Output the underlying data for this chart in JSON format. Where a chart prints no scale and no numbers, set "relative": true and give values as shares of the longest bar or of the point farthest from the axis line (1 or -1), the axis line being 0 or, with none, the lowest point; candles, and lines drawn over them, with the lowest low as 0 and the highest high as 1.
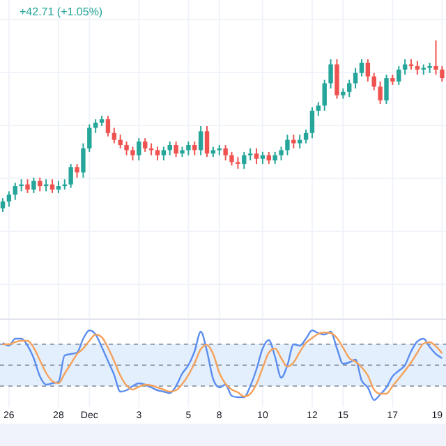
{
  "chart_data": [
    {
      "type": "candlestick",
      "relative": true,
      "tick_labels": false,
      "grid": true,
      "colors": [
        "#26a69a",
        "#26a69a",
        "#26a69a",
        "#26a69a",
        "#ef5350",
        "#26a69a",
        "#ef5350",
        "#26a69a",
        "#ef5350",
        "#26a69a",
        "#26a69a",
        "#26a69a",
        "#ef5350",
        "#26a69a",
        "#26a69a",
        "#26a69a",
        "#26a69a",
        "#ef5350",
        "#ef5350",
        "#ef5350",
        "#ef5350",
        "#ef5350",
        "#26a69a",
        "#ef5350",
        "#ef5350",
        "#ef5350",
        "#26a69a",
        "#26a69a",
        "#ef5350",
        "#26a69a",
        "#26a69a",
        "#ef5350",
        "#26a69a",
        "#ef5350",
        "#26a69a",
        "#26a69a",
        "#ef5350",
        "#ef5350",
        "#ef5350",
        "#26a69a",
        "#26a69a",
        "#ef5350",
        "#26a69a",
        "#ef5350",
        "#26a69a",
        "#26a69a",
        "#26a69a",
        "#ef5350",
        "#26a69a",
        "#26a69a",
        "#26a69a",
        "#26a69a",
        "#26a69a",
        "#26a69a",
        "#ef5350",
        "#26a69a",
        "#26a69a",
        "#26a69a",
        "#26a69a",
        "#ef5350",
        "#ef5350",
        "#ef5350",
        "#26a69a",
        "#ef5350",
        "#26a69a",
        "#26a69a",
        "#ef5350",
        "#ef5350",
        "#26a69a",
        "#26a69a",
        "#ef5350",
        "#ef5350"
      ],
      "annotations": [
        "+42.71 (+1.05%)"
      ],
      "categories": [
        null,
        null,
        null,
        null,
        null,
        null,
        null,
        null,
        null,
        null,
        null,
        null,
        null,
        null,
        null,
        null,
        null,
        null,
        null,
        null,
        null,
        null,
        null,
        null,
        null,
        null,
        null,
        null,
        null,
        null,
        null,
        null,
        null,
        null,
        null,
        null,
        null,
        null,
        null,
        null,
        null,
        null,
        null,
        null,
        null,
        null,
        null,
        null,
        null,
        null,
        null,
        null,
        null,
        null,
        null,
        null,
        null,
        null,
        null,
        null,
        null,
        null,
        null,
        null,
        null,
        null,
        null,
        null,
        null,
        null,
        null,
        null
      ],
      "ohlc": [
        [
          0.02,
          0.08,
          0,
          0.06
        ],
        [
          0.06,
          0.12,
          0.03,
          0.1
        ],
        [
          0.1,
          0.17,
          0.07,
          0.15
        ],
        [
          0.15,
          0.19,
          0.12,
          0.16
        ],
        [
          0.16,
          0.19,
          0.11,
          0.13
        ],
        [
          0.13,
          0.2,
          0.11,
          0.18
        ],
        [
          0.18,
          0.2,
          0.12,
          0.15
        ],
        [
          0.15,
          0.19,
          0.12,
          0.16
        ],
        [
          0.16,
          0.19,
          0.11,
          0.13
        ],
        [
          0.13,
          0.18,
          0.11,
          0.15
        ],
        [
          0.15,
          0.19,
          0.13,
          0.16
        ],
        [
          0.16,
          0.28,
          0.14,
          0.26
        ],
        [
          0.26,
          0.28,
          0.2,
          0.23
        ],
        [
          0.23,
          0.4,
          0.2,
          0.37
        ],
        [
          0.37,
          0.51,
          0.35,
          0.49
        ],
        [
          0.49,
          0.54,
          0.46,
          0.52
        ],
        [
          0.52,
          0.56,
          0.5,
          0.54
        ],
        [
          0.54,
          0.56,
          0.44,
          0.46
        ],
        [
          0.46,
          0.49,
          0.4,
          0.42
        ],
        [
          0.42,
          0.45,
          0.37,
          0.39
        ],
        [
          0.39,
          0.41,
          0.33,
          0.36
        ],
        [
          0.36,
          0.38,
          0.3,
          0.33
        ],
        [
          0.33,
          0.43,
          0.3,
          0.41
        ],
        [
          0.41,
          0.43,
          0.35,
          0.37
        ],
        [
          0.37,
          0.4,
          0.33,
          0.36
        ],
        [
          0.36,
          0.38,
          0.3,
          0.33
        ],
        [
          0.33,
          0.38,
          0.3,
          0.36
        ],
        [
          0.36,
          0.41,
          0.33,
          0.39
        ],
        [
          0.39,
          0.41,
          0.32,
          0.34
        ],
        [
          0.34,
          0.38,
          0.32,
          0.36
        ],
        [
          0.36,
          0.41,
          0.33,
          0.39
        ],
        [
          0.39,
          0.41,
          0.33,
          0.36
        ],
        [
          0.36,
          0.5,
          0.33,
          0.47
        ],
        [
          0.47,
          0.5,
          0.32,
          0.34
        ],
        [
          0.34,
          0.38,
          0.32,
          0.36
        ],
        [
          0.36,
          0.39,
          0.33,
          0.37
        ],
        [
          0.37,
          0.39,
          0.3,
          0.33
        ],
        [
          0.33,
          0.35,
          0.27,
          0.29
        ],
        [
          0.29,
          0.32,
          0.25,
          0.28
        ],
        [
          0.28,
          0.35,
          0.25,
          0.33
        ],
        [
          0.33,
          0.37,
          0.3,
          0.34
        ],
        [
          0.34,
          0.37,
          0.28,
          0.31
        ],
        [
          0.31,
          0.35,
          0.28,
          0.33
        ],
        [
          0.33,
          0.35,
          0.28,
          0.3
        ],
        [
          0.3,
          0.35,
          0.28,
          0.33
        ],
        [
          0.33,
          0.38,
          0.3,
          0.36
        ],
        [
          0.36,
          0.45,
          0.33,
          0.42
        ],
        [
          0.42,
          0.45,
          0.37,
          0.4
        ],
        [
          0.4,
          0.45,
          0.37,
          0.42
        ],
        [
          0.42,
          0.48,
          0.4,
          0.46
        ],
        [
          0.46,
          0.61,
          0.43,
          0.59
        ],
        [
          0.59,
          0.64,
          0.56,
          0.62
        ],
        [
          0.62,
          0.77,
          0.59,
          0.75
        ],
        [
          0.75,
          0.89,
          0.72,
          0.86
        ],
        [
          0.86,
          0.89,
          0.66,
          0.68
        ],
        [
          0.68,
          0.72,
          0.66,
          0.7
        ],
        [
          0.7,
          0.77,
          0.67,
          0.75
        ],
        [
          0.75,
          0.84,
          0.72,
          0.81
        ],
        [
          0.81,
          0.89,
          0.79,
          0.87
        ],
        [
          0.87,
          0.89,
          0.76,
          0.79
        ],
        [
          0.79,
          0.81,
          0.71,
          0.73
        ],
        [
          0.73,
          0.76,
          0.63,
          0.65
        ],
        [
          0.65,
          0.8,
          0.63,
          0.78
        ],
        [
          0.78,
          0.8,
          0.74,
          0.76
        ],
        [
          0.76,
          0.85,
          0.74,
          0.83
        ],
        [
          0.83,
          0.89,
          0.8,
          0.86
        ],
        [
          0.86,
          0.89,
          0.83,
          0.85
        ],
        [
          0.85,
          0.88,
          0.8,
          0.83
        ],
        [
          0.83,
          0.86,
          0.8,
          0.84
        ],
        [
          0.84,
          0.87,
          0.81,
          0.85
        ],
        [
          0.85,
          1,
          0.8,
          0.83
        ],
        [
          0.83,
          0.85,
          0.76,
          0.78
        ]
      ]
    },
    {
      "type": "line",
      "relative": true,
      "tick_labels": "x",
      "grid": true,
      "categories": [
        null,
        "26",
        null,
        null,
        null,
        null,
        null,
        null,
        null,
        "28",
        null,
        null,
        null,
        null,
        "Dec",
        null,
        null,
        null,
        null,
        null,
        null,
        null,
        "3",
        null,
        null,
        null,
        null,
        null,
        null,
        null,
        "5",
        null,
        null,
        null,
        null,
        "8",
        null,
        null,
        null,
        null,
        null,
        null,
        "10",
        null,
        null,
        null,
        null,
        null,
        null,
        null,
        "12",
        null,
        null,
        null,
        null,
        "15",
        null,
        null,
        null,
        null,
        null,
        null,
        null,
        "17",
        null,
        null,
        null,
        null,
        null,
        null,
        null,
        "19"
      ],
      "bands": [
        {
          "axis": "y",
          "from": 0.2,
          "to": 0.8,
          "color": "#e3effd"
        }
      ],
      "ref_lines": [
        {
          "axis": "y",
          "value": 0.8,
          "color": "#9aa4b2",
          "line_style": "dashed"
        },
        {
          "axis": "y",
          "value": 0.5,
          "color": "#9aa4b2",
          "line_style": "dashed"
        },
        {
          "axis": "y",
          "value": 0.2,
          "color": "#9aa4b2",
          "line_style": "dashed"
        }
      ],
      "series": [
        {
          "color": "#5b8def",
          "values": [
            0.82,
            0.78,
            0.88,
            0.88,
            0.78,
            0.6,
            0.34,
            0.22,
            0.24,
            0.26,
            0.64,
            0.66,
            0.68,
            0.88,
            1,
            0.94,
            0.76,
            0.56,
            0.36,
            0.12,
            0.14,
            0.2,
            0.24,
            0.22,
            0.18,
            0.14,
            0.12,
            0.1,
            0.2,
            0.38,
            0.5,
            0.7,
            0.98,
            0.7,
            0.3,
            0.18,
            0.22,
            0.06,
            0.04,
            0.04,
            0.2,
            0.44,
            0.74,
            0.86,
            0.62,
            0.32,
            0.5,
            0.8,
            0.78,
            0.88,
            1,
            0.96,
            0.94,
            0.98,
            0.74,
            0.52,
            0.54,
            0.58,
            0.28,
            0.18,
            0,
            0.08,
            0.18,
            0.34,
            0.42,
            0.5,
            0.7,
            0.84,
            0.88,
            0.76,
            0.66,
            0.6
          ]
        },
        {
          "color": "#f5a15a",
          "values": [
            0.8,
            0.8,
            0.83,
            0.85,
            0.85,
            0.75,
            0.57,
            0.39,
            0.27,
            0.24,
            0.38,
            0.52,
            0.66,
            0.74,
            0.85,
            0.94,
            0.9,
            0.75,
            0.56,
            0.35,
            0.21,
            0.15,
            0.19,
            0.22,
            0.21,
            0.18,
            0.15,
            0.12,
            0.14,
            0.23,
            0.36,
            0.53,
            0.73,
            0.79,
            0.66,
            0.39,
            0.23,
            0.15,
            0.11,
            0.05,
            0.09,
            0.23,
            0.46,
            0.68,
            0.74,
            0.6,
            0.48,
            0.54,
            0.69,
            0.82,
            0.89,
            0.95,
            0.97,
            0.96,
            0.89,
            0.75,
            0.6,
            0.55,
            0.47,
            0.35,
            0.15,
            0.09,
            0.09,
            0.2,
            0.31,
            0.42,
            0.54,
            0.68,
            0.81,
            0.83,
            0.77,
            0.67
          ]
        }
      ]
    }
  ]
}
